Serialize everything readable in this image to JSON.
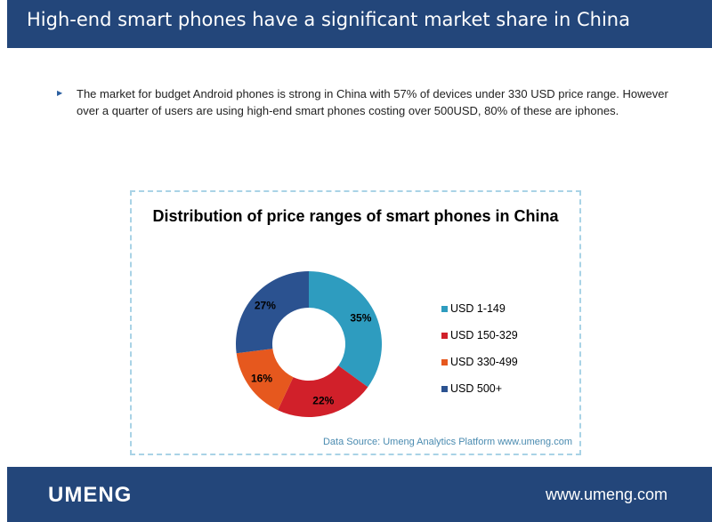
{
  "header": {
    "title": "High-end smart phones have a significant market share in China"
  },
  "body": {
    "bullet": "The market for budget Android phones is strong in China with 57% of devices under 330 USD price range. However over a quarter of users are using high-end smart phones costing over 500USD, 80% of these are iphones."
  },
  "chart_data": {
    "type": "pie",
    "variant": "donut",
    "title": "Distribution of price ranges of smart phones in China",
    "categories": [
      "USD 1-149",
      "USD 150-329",
      "USD 330-499",
      "USD 500+"
    ],
    "values": [
      35,
      22,
      16,
      27
    ],
    "labels": [
      "35%",
      "22%",
      "16%",
      "27%"
    ],
    "colors": [
      "#2e9cbf",
      "#d1202a",
      "#e6581e",
      "#2b5290"
    ],
    "legend": "right",
    "source": "Data Source: Umeng Analytics Platform www.umeng.com"
  },
  "footer": {
    "logo": "UMENG",
    "url": "www.umeng.com"
  }
}
